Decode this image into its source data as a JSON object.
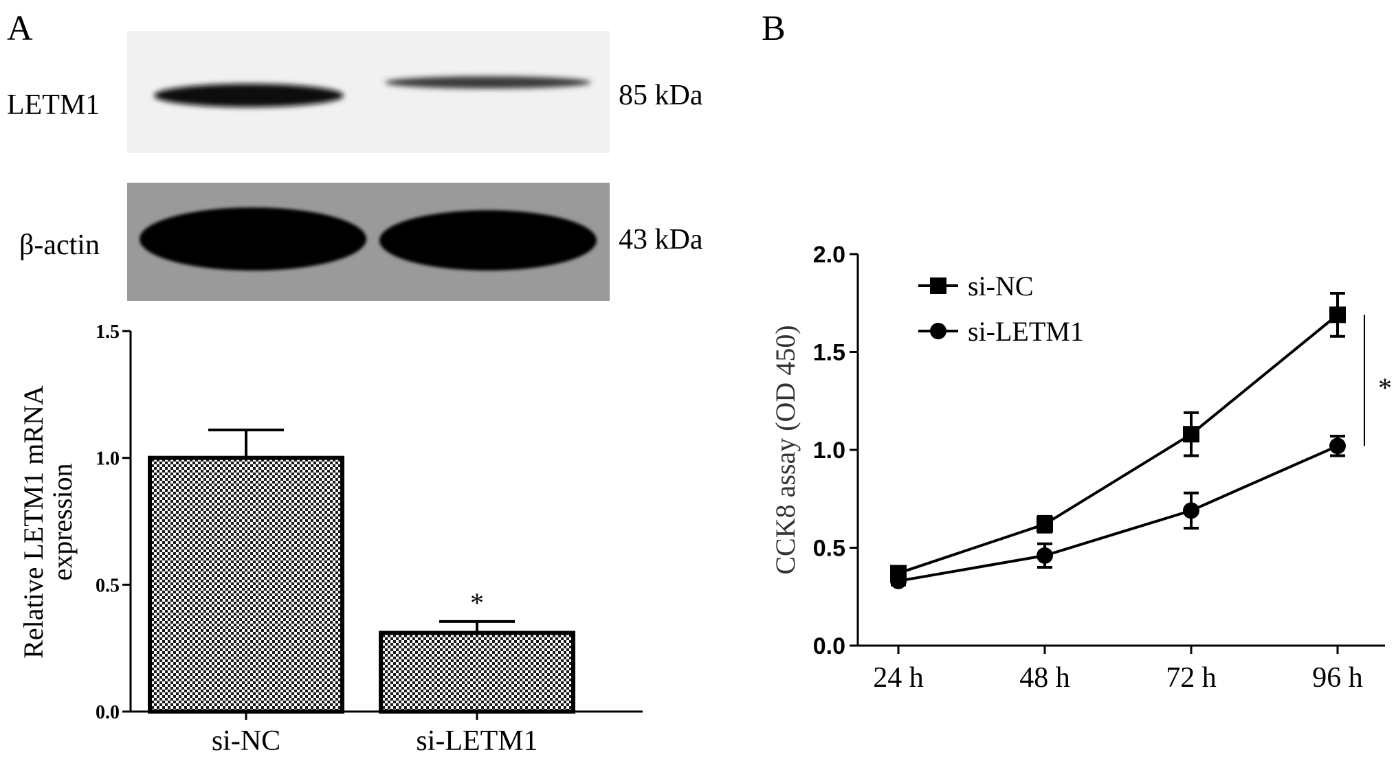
{
  "panels": {
    "a": {
      "label": "A"
    },
    "b": {
      "label": "B"
    }
  },
  "western_blot": {
    "rows": [
      {
        "protein": "LETM1",
        "size": "85 kDa",
        "band_intensity": [
          1.0,
          0.45
        ]
      },
      {
        "protein": "β-actin",
        "size": "43 kDa",
        "band_intensity": [
          1.0,
          1.0
        ]
      }
    ]
  },
  "chart_data": [
    {
      "type": "bar",
      "categories": [
        "si-NC",
        "si-LETM1"
      ],
      "values": [
        1.0,
        0.31
      ],
      "errors": [
        0.11,
        0.045
      ],
      "significance": [
        "",
        "*"
      ],
      "title": "",
      "xlabel": "",
      "ylabel": [
        "Relative LETM1 mRNA",
        "expression"
      ],
      "ylim": [
        0,
        1.5
      ],
      "yticks": [
        "0.0",
        "0.5",
        "1.0",
        "1.5"
      ],
      "grid": false,
      "fill_pattern": "checkerboard"
    },
    {
      "type": "line",
      "categories": [
        "24 h",
        "48 h",
        "72 h",
        "96 h"
      ],
      "series": [
        {
          "name": "si-NC",
          "marker": "square",
          "values": [
            0.37,
            0.62,
            1.08,
            1.69
          ],
          "errors": [
            0.03,
            0.04,
            0.11,
            0.11
          ]
        },
        {
          "name": "si-LETM1",
          "marker": "circle",
          "values": [
            0.33,
            0.46,
            0.69,
            1.02
          ],
          "errors": [
            0.02,
            0.06,
            0.09,
            0.05
          ]
        }
      ],
      "significance": "*",
      "title": "",
      "xlabel": "",
      "ylabel": "CCK8 assay (OD 450)",
      "ylim": [
        0,
        2.0
      ],
      "yticks": [
        "0.0",
        "0.5",
        "1.0",
        "1.5",
        "2.0"
      ],
      "grid": false,
      "legend": "top-left"
    }
  ]
}
